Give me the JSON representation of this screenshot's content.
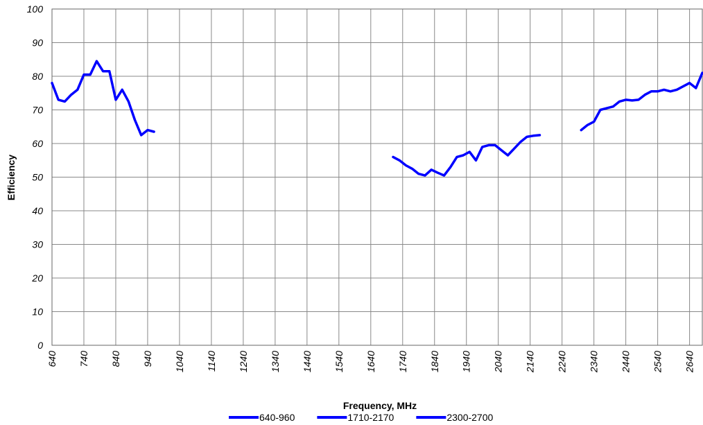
{
  "chart_data": {
    "type": "line",
    "x_label": "Frequency, MHz",
    "y_label": "Efficiency",
    "xlim": [
      640,
      2680
    ],
    "ylim": [
      0,
      100
    ],
    "xticks": [
      640,
      740,
      840,
      940,
      1040,
      1140,
      1240,
      1340,
      1440,
      1540,
      1640,
      1740,
      1840,
      1940,
      2040,
      2140,
      2240,
      2340,
      2440,
      2540,
      2640
    ],
    "yticks": [
      0,
      10,
      20,
      30,
      40,
      50,
      60,
      70,
      80,
      90,
      100
    ],
    "grid": true,
    "legend": "bottom",
    "series": [
      {
        "name": "640-960",
        "color": "#0000ff",
        "x": [
          640,
          660,
          680,
          700,
          720,
          740,
          760,
          780,
          800,
          820,
          840,
          860,
          880,
          900,
          920,
          940,
          960
        ],
        "values": [
          78,
          73,
          72.5,
          74.5,
          76,
          80.5,
          80.5,
          84.5,
          81.5,
          81.5,
          73,
          76,
          72.5,
          67,
          62.5,
          64,
          63.5
        ]
      },
      {
        "name": "1710-2170",
        "color": "#0000ff",
        "x": [
          1710,
          1730,
          1750,
          1770,
          1790,
          1810,
          1830,
          1850,
          1870,
          1890,
          1910,
          1930,
          1950,
          1970,
          1990,
          2010,
          2030,
          2050,
          2070,
          2090,
          2110,
          2130,
          2150,
          2170
        ],
        "values": [
          56,
          55,
          53.5,
          52.5,
          51,
          50.5,
          52.2,
          51.3,
          50.5,
          53,
          56,
          56.5,
          57.5,
          55,
          59,
          59.5,
          59.5,
          58,
          56.5,
          58.5,
          60.5,
          62,
          62.3,
          62.5
        ]
      },
      {
        "name": "2300-2700",
        "color": "#0000ff",
        "x": [
          2300,
          2320,
          2340,
          2360,
          2380,
          2400,
          2420,
          2440,
          2460,
          2480,
          2500,
          2520,
          2540,
          2560,
          2580,
          2600,
          2620,
          2640,
          2660,
          2680
        ],
        "values": [
          64,
          65.5,
          66.5,
          70,
          70.5,
          71,
          72.5,
          73,
          72.8,
          73,
          74.5,
          75.5,
          75.5,
          76,
          75.5,
          76,
          77,
          78,
          76.5,
          81
        ]
      }
    ]
  }
}
